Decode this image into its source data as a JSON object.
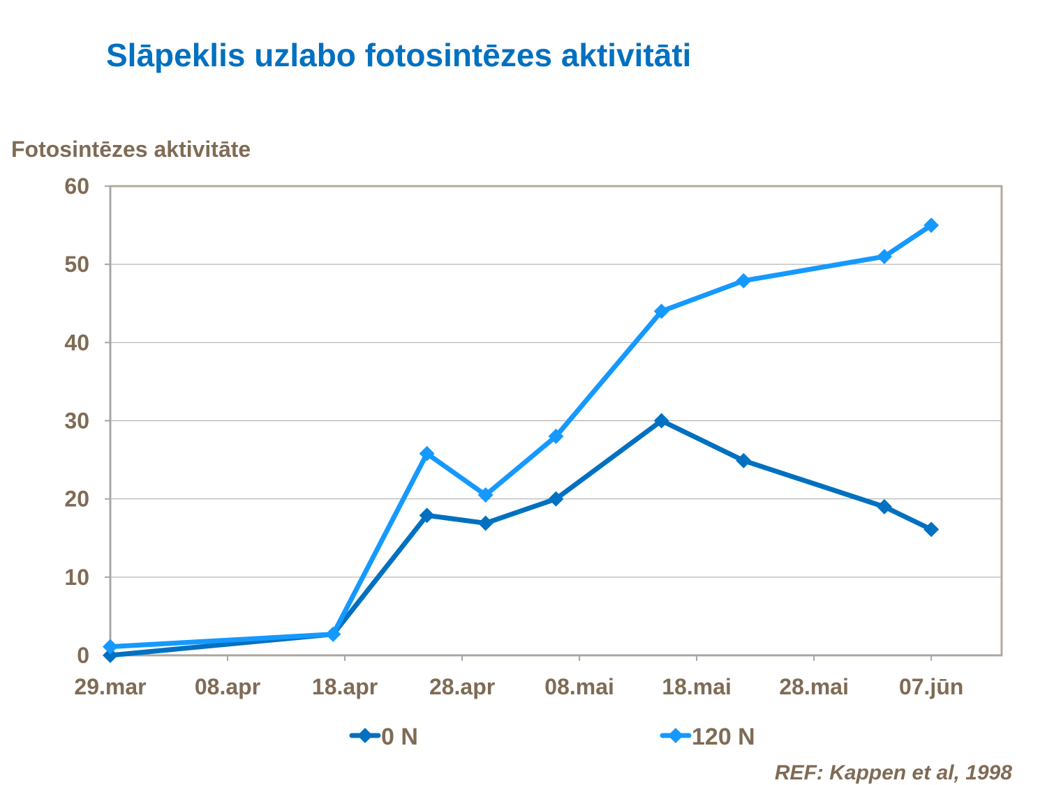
{
  "title": "Slāpeklis uzlabo fotosintēzes aktivitāti",
  "reference": "REF: Kappen et al, 1998",
  "chart_data": {
    "type": "line",
    "title": "Slāpeklis uzlabo fotosintēzes aktivitāti",
    "ylabel": "Fotosintēzes aktivitāte",
    "xlabel": "",
    "ylim": [
      0,
      60
    ],
    "yticks": [
      0,
      10,
      20,
      30,
      40,
      50,
      60
    ],
    "xlim": [
      "29.mar",
      "13.jūn"
    ],
    "xticks": [
      "29.mar",
      "08.apr",
      "18.apr",
      "28.apr",
      "08.mai",
      "18.mai",
      "28.mai",
      "07.jūn"
    ],
    "grid": "horizontal",
    "legend": "bottom",
    "x": [
      "29.mar",
      "17.apr",
      "25.apr",
      "30.apr",
      "06.mai",
      "15.mai",
      "22.mai",
      "03.jūn",
      "07.jūn"
    ],
    "series": [
      {
        "name": "0 N",
        "color": "#0070C0",
        "marker": "diamond",
        "values": [
          0,
          2.7,
          17.9,
          16.9,
          20,
          30,
          24.9,
          19,
          16.1
        ]
      },
      {
        "name": "120 N",
        "color": "#1599FF",
        "marker": "diamond",
        "values": [
          1.1,
          2.7,
          25.8,
          20.5,
          28,
          44,
          47.9,
          51,
          55
        ]
      }
    ]
  }
}
